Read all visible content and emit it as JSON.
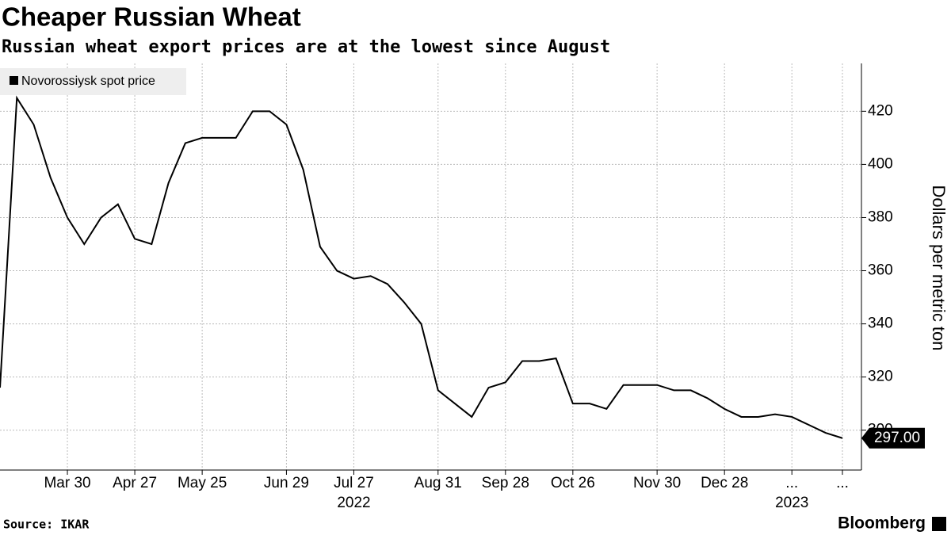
{
  "chart_data": {
    "type": "line",
    "title": "Cheaper Russian Wheat",
    "subtitle": "Russian wheat export prices are at the lowest since August",
    "y_axis_label": "Dollars per metric ton",
    "source": "Source: IKAR",
    "brand": "Bloomberg",
    "categories": [
      null,
      null,
      null,
      null,
      "Mar 30",
      null,
      null,
      null,
      "Apr 27",
      null,
      null,
      null,
      "May 25",
      null,
      null,
      null,
      null,
      "Jun 29",
      null,
      null,
      null,
      "Jul 27",
      null,
      null,
      null,
      null,
      "Aug 31",
      null,
      null,
      null,
      "Sep 28",
      null,
      null,
      null,
      "Oct 26",
      null,
      null,
      null,
      null,
      "Nov 30",
      null,
      null,
      null,
      "Dec 28",
      null,
      null,
      null,
      "...",
      null,
      null,
      "..."
    ],
    "year_labels": [
      {
        "label": "2022",
        "category_index": 21
      },
      {
        "label": "2023",
        "category_index": 47
      }
    ],
    "series": [
      {
        "name": "Novorossiysk spot price",
        "color": "#000000",
        "values": [
          316,
          425,
          415,
          395,
          380,
          370,
          380,
          385,
          372,
          370,
          393,
          408,
          410,
          410,
          410,
          420,
          420,
          415,
          398,
          369,
          360,
          357,
          358,
          355,
          348,
          340,
          315,
          310,
          305,
          316,
          318,
          326,
          326,
          327,
          310,
          310,
          308,
          317,
          317,
          317,
          315,
          315,
          312,
          308,
          305,
          305,
          306,
          305,
          302,
          299,
          297
        ],
        "last_value_label": "297.00"
      }
    ],
    "ylim": [
      285,
      438
    ],
    "yticks": [
      300,
      320,
      340,
      360,
      380,
      400,
      420
    ],
    "grid": true,
    "legend": "top-left"
  }
}
